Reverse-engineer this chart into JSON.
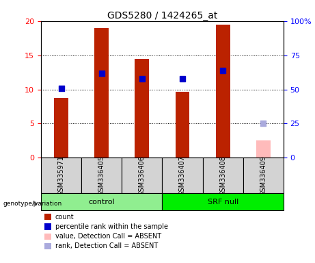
{
  "title": "GDS5280 / 1424265_at",
  "samples": [
    "GSM335971",
    "GSM336405",
    "GSM336406",
    "GSM336407",
    "GSM336408",
    "GSM336409"
  ],
  "count_values": [
    8.8,
    19.0,
    14.5,
    9.7,
    19.5,
    2.5
  ],
  "count_absent": [
    false,
    false,
    false,
    false,
    false,
    true
  ],
  "rank_values": [
    51,
    62,
    58,
    58,
    64,
    25
  ],
  "rank_absent": [
    false,
    false,
    false,
    false,
    false,
    true
  ],
  "groups": [
    {
      "label": "control",
      "indices": [
        0,
        1,
        2
      ],
      "color": "#90ee90"
    },
    {
      "label": "SRF null",
      "indices": [
        3,
        4,
        5
      ],
      "color": "#00ee00"
    }
  ],
  "left_ylim": [
    0,
    20
  ],
  "right_ylim": [
    0,
    100
  ],
  "left_yticks": [
    0,
    5,
    10,
    15,
    20
  ],
  "right_yticks": [
    0,
    25,
    50,
    75,
    100
  ],
  "right_yticklabels": [
    "0",
    "25",
    "50",
    "75",
    "100%"
  ],
  "bar_color": "#bb2200",
  "bar_absent_color": "#ffbbbb",
  "dot_color": "#0000cc",
  "dot_absent_color": "#aaaadd",
  "dot_size": 30,
  "bar_width": 0.35,
  "legend_items": [
    {
      "label": "count",
      "color": "#bb2200"
    },
    {
      "label": "percentile rank within the sample",
      "color": "#0000cc"
    },
    {
      "label": "value, Detection Call = ABSENT",
      "color": "#ffbbbb"
    },
    {
      "label": "rank, Detection Call = ABSENT",
      "color": "#aaaadd"
    }
  ]
}
